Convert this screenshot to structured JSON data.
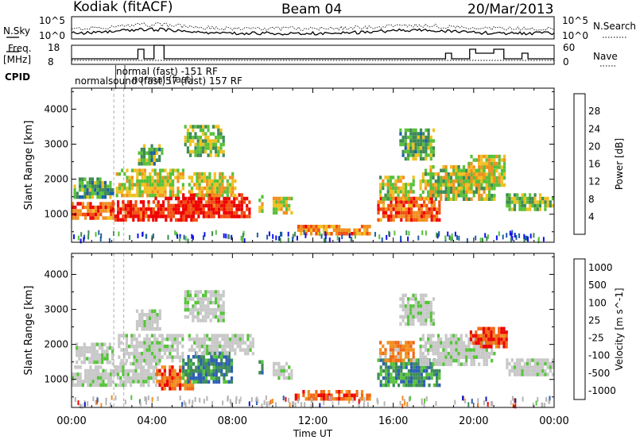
{
  "header": {
    "station": "Kodiak (fitACF)",
    "beam": "Beam 04",
    "date": "20/Mar/2013"
  },
  "top_panel": {
    "left_label": "N.Sky",
    "right_label": "N.Search",
    "y_ticks_left": [
      "10^5",
      "10^0"
    ],
    "y_ticks_right": [
      "10^5",
      "10^0"
    ]
  },
  "freq_panel": {
    "left_label_line1": "Freq.",
    "left_label_line2": "[MHz]",
    "right_label": "Nave",
    "y_ticks_left": [
      "18",
      "8"
    ],
    "y_ticks_right": [
      "60",
      "0"
    ]
  },
  "cpid": {
    "label": "CPID",
    "line1": "normal (fast) -151 RF",
    "line2": "normalsound (fast)57 (fast) 157 RF",
    "line2_overlap": "normal (fast)"
  },
  "colors": {
    "power_scale": [
      "#1010f0",
      "#1d5fa8",
      "#3e8a54",
      "#58c03a",
      "#f0c020",
      "#f09020",
      "#f05010",
      "#ee0000"
    ],
    "velocity_scale": [
      "#1018b8",
      "#2d5fb4",
      "#3e8c5a",
      "#56c43a",
      "#c8c8c8",
      "#c8c8c8",
      "#f09020",
      "#f06818",
      "#ee0000"
    ],
    "ground_scatter": "#b4b4b4"
  },
  "chart_data": [
    {
      "type": "heatmap",
      "title": "Power",
      "ylabel": "Slant Range [km]",
      "xlabel": "Time UT",
      "x_ticks": [
        "00:00",
        "04:00",
        "08:00",
        "12:00",
        "16:00",
        "20:00",
        "00:00"
      ],
      "y_ticks": [
        "1000",
        "2000",
        "3000",
        "4000"
      ],
      "ylim": [
        200,
        4600
      ],
      "xlim_hours": [
        0,
        24
      ],
      "colorbar_label": "Power [dB]",
      "colorbar_ticks": [
        "4",
        "8",
        "12",
        "16",
        "20",
        "24",
        "28"
      ],
      "regions": [
        {
          "t": [
            0.0,
            2.1
          ],
          "r": [
            850,
            1350
          ],
          "level": 0.78
        },
        {
          "t": [
            0.1,
            2.0
          ],
          "r": [
            1450,
            2050
          ],
          "level": 0.35
        },
        {
          "t": [
            2.0,
            4.2
          ],
          "r": [
            800,
            1400
          ],
          "level": 0.88
        },
        {
          "t": [
            2.2,
            5.5
          ],
          "r": [
            1500,
            2300
          ],
          "level": 0.55
        },
        {
          "t": [
            4.0,
            6.2
          ],
          "r": [
            850,
            1500
          ],
          "level": 0.95
        },
        {
          "t": [
            5.5,
            8.8
          ],
          "r": [
            900,
            1600
          ],
          "level": 0.92
        },
        {
          "t": [
            5.8,
            8.2
          ],
          "r": [
            1500,
            2200
          ],
          "level": 0.55
        },
        {
          "t": [
            5.6,
            7.6
          ],
          "r": [
            2700,
            3550
          ],
          "level": 0.45
        },
        {
          "t": [
            3.3,
            4.5
          ],
          "r": [
            2400,
            3000
          ],
          "level": 0.4
        },
        {
          "t": [
            9.3,
            9.5
          ],
          "r": [
            1100,
            1550
          ],
          "level": 0.5
        },
        {
          "t": [
            10.0,
            11.0
          ],
          "r": [
            1050,
            1500
          ],
          "level": 0.55
        },
        {
          "t": [
            11.1,
            14.8
          ],
          "r": [
            400,
            700
          ],
          "level": 0.72
        },
        {
          "t": [
            15.2,
            18.3
          ],
          "r": [
            800,
            1500
          ],
          "level": 0.78
        },
        {
          "t": [
            15.3,
            17.0
          ],
          "r": [
            1400,
            2100
          ],
          "level": 0.52
        },
        {
          "t": [
            17.3,
            21.0
          ],
          "r": [
            1400,
            2400
          ],
          "level": 0.5
        },
        {
          "t": [
            19.7,
            21.5
          ],
          "r": [
            1800,
            2700
          ],
          "level": 0.55
        },
        {
          "t": [
            21.6,
            24.0
          ],
          "r": [
            1100,
            1600
          ],
          "level": 0.45
        },
        {
          "t": [
            16.3,
            18.0
          ],
          "r": [
            2600,
            3450
          ],
          "level": 0.4
        }
      ]
    },
    {
      "type": "heatmap",
      "title": "Velocity",
      "ylabel": "Slant Range [km]",
      "xlabel": "Time UT",
      "x_ticks": [
        "00:00",
        "04:00",
        "08:00",
        "12:00",
        "16:00",
        "20:00",
        "00:00"
      ],
      "y_ticks": [
        "1000",
        "2000",
        "3000",
        "4000"
      ],
      "ylim": [
        200,
        4600
      ],
      "xlim_hours": [
        0,
        24
      ],
      "colorbar_label": "Velocity [m s^-1]",
      "colorbar_ticks": [
        "1000",
        "500",
        "100",
        "25",
        "-25",
        "-100",
        "-500",
        "-1000"
      ],
      "regions": [
        {
          "t": [
            0.0,
            2.2
          ],
          "r": [
            800,
            1400
          ],
          "level": 0.5
        },
        {
          "t": [
            0.2,
            2.0
          ],
          "r": [
            1450,
            2050
          ],
          "level": 0.5
        },
        {
          "t": [
            2.0,
            4.3
          ],
          "r": [
            800,
            1500
          ],
          "level": 0.5
        },
        {
          "t": [
            2.3,
            5.5
          ],
          "r": [
            1500,
            2300
          ],
          "level": 0.5
        },
        {
          "t": [
            4.2,
            6.0
          ],
          "r": [
            700,
            1400
          ],
          "level": 0.82
        },
        {
          "t": [
            5.5,
            8.0
          ],
          "r": [
            900,
            1800
          ],
          "level": 0.25
        },
        {
          "t": [
            5.8,
            9.0
          ],
          "r": [
            1700,
            2300
          ],
          "level": 0.5
        },
        {
          "t": [
            5.6,
            7.6
          ],
          "r": [
            2700,
            3550
          ],
          "level": 0.5
        },
        {
          "t": [
            3.2,
            4.4
          ],
          "r": [
            2400,
            3000
          ],
          "level": 0.5
        },
        {
          "t": [
            9.3,
            9.5
          ],
          "r": [
            1100,
            1550
          ],
          "level": 0.3
        },
        {
          "t": [
            10.0,
            11.0
          ],
          "r": [
            1050,
            1500
          ],
          "level": 0.45
        },
        {
          "t": [
            11.1,
            14.8
          ],
          "r": [
            400,
            700
          ],
          "level": 0.82
        },
        {
          "t": [
            15.2,
            18.3
          ],
          "r": [
            800,
            1600
          ],
          "level": 0.28
        },
        {
          "t": [
            15.3,
            17.0
          ],
          "r": [
            1500,
            2100
          ],
          "level": 0.75
        },
        {
          "t": [
            17.3,
            21.0
          ],
          "r": [
            1400,
            2300
          ],
          "level": 0.5
        },
        {
          "t": [
            19.8,
            21.6
          ],
          "r": [
            1900,
            2500
          ],
          "level": 0.88
        },
        {
          "t": [
            21.6,
            24.0
          ],
          "r": [
            1100,
            1600
          ],
          "level": 0.5
        },
        {
          "t": [
            16.3,
            18.0
          ],
          "r": [
            2600,
            3450
          ],
          "level": 0.5
        }
      ]
    }
  ]
}
